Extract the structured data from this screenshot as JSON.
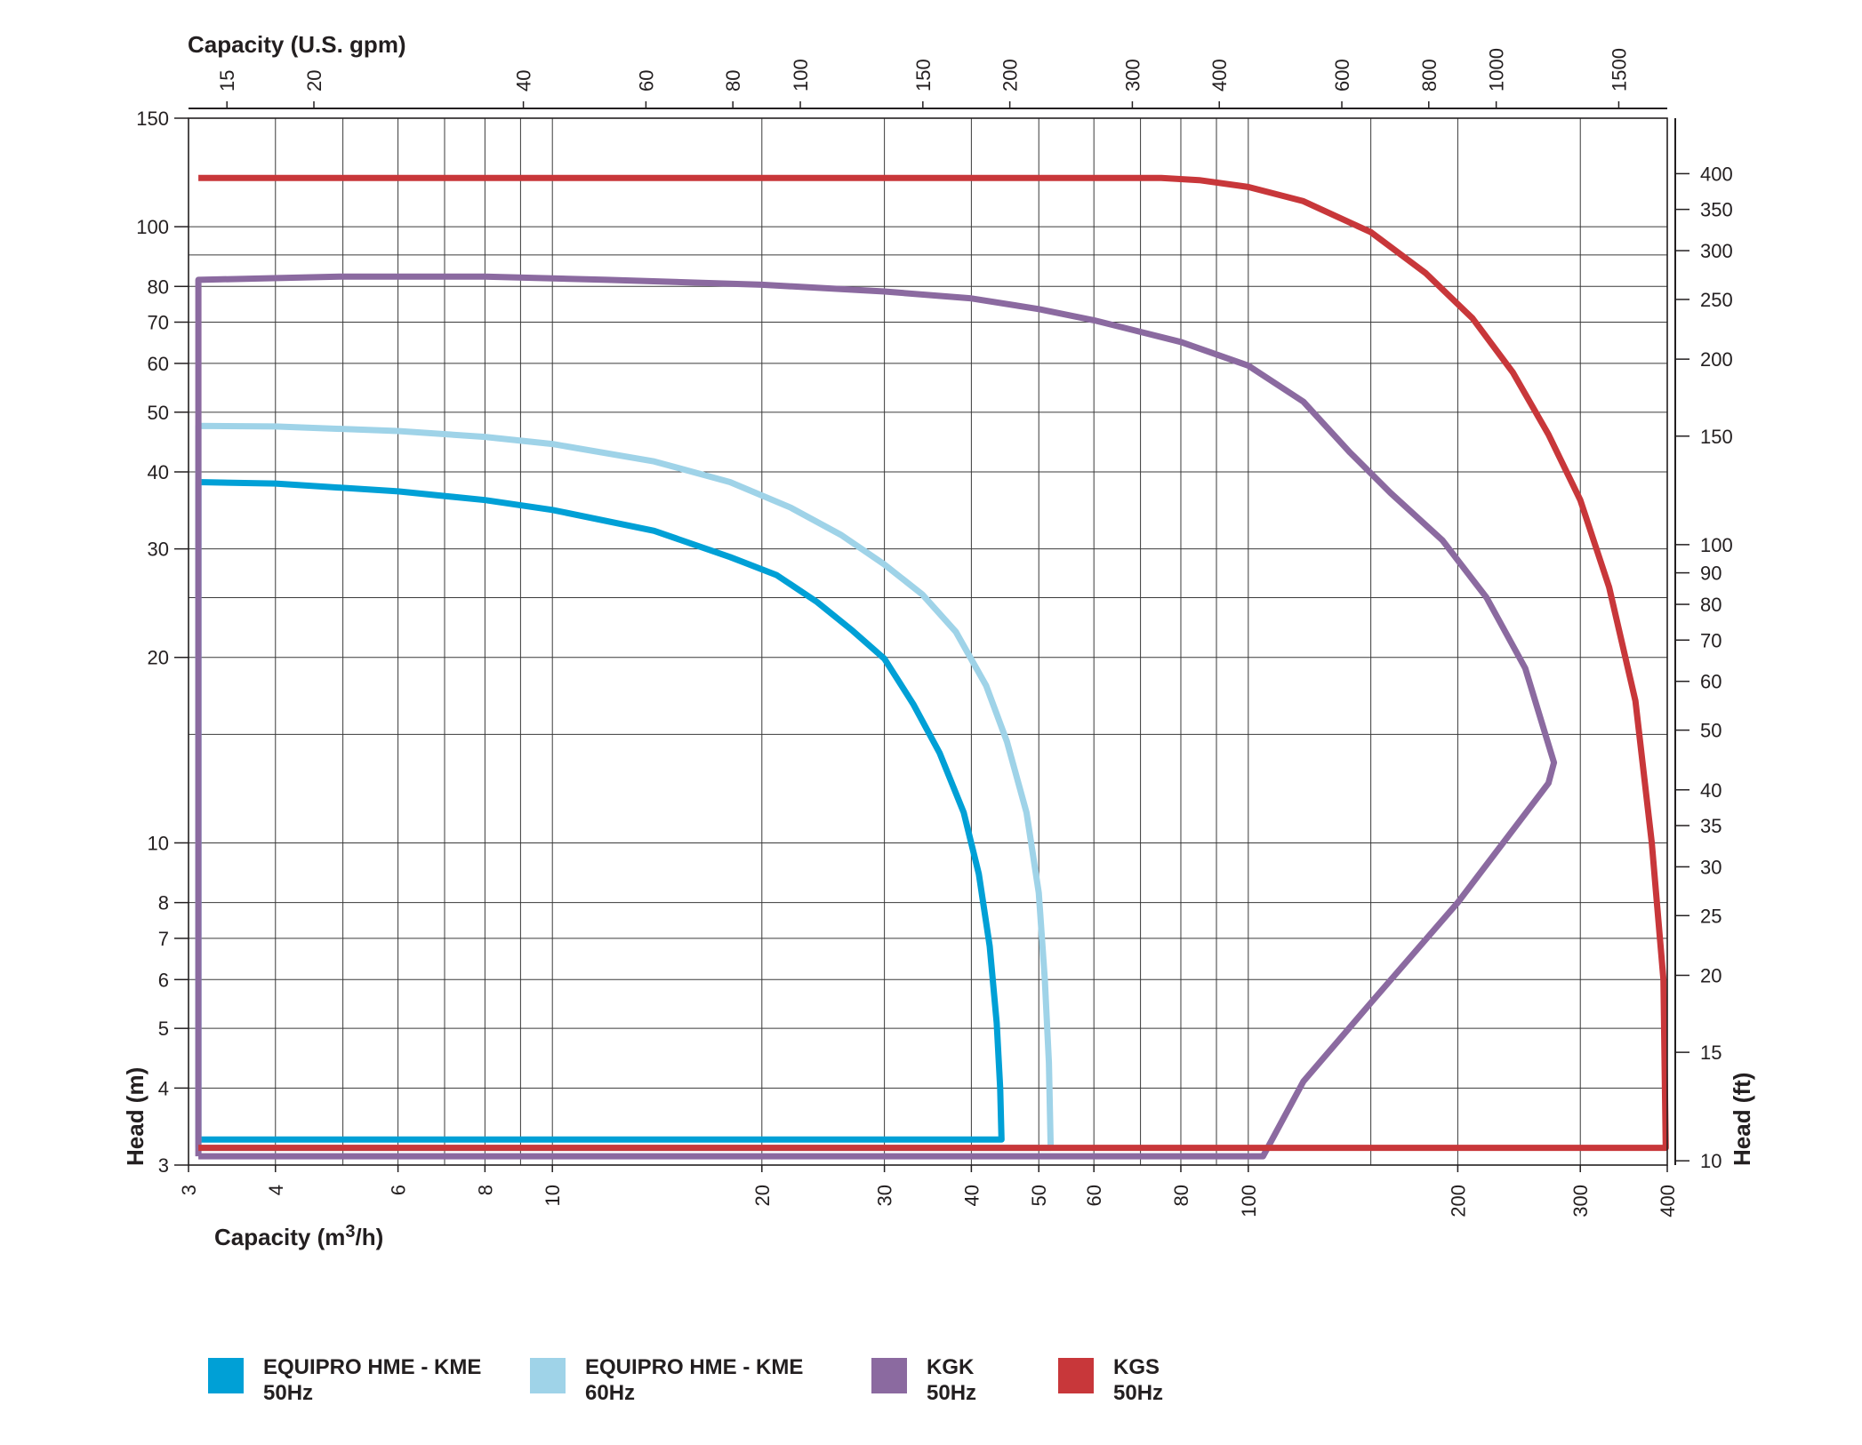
{
  "chart_data": {
    "type": "line",
    "x_axis_bottom": {
      "label_main": "Capacity (m",
      "label_sup": "3",
      "label_tail": "/h)",
      "scale": "log",
      "range": [
        3,
        400
      ],
      "ticks": [
        "3",
        "4",
        "6",
        "8",
        "10",
        "20",
        "30",
        "40",
        "50",
        "60",
        "80",
        "100",
        "200",
        "300",
        "400"
      ]
    },
    "x_axis_top": {
      "label": "Capacity (U.S. gpm)",
      "scale": "log",
      "ticks": [
        "15",
        "20",
        "40",
        "60",
        "80",
        "100",
        "150",
        "200",
        "300",
        "400",
        "600",
        "800",
        "1000",
        "1500"
      ]
    },
    "y_axis_left": {
      "label": "Head (m)",
      "scale": "log",
      "range": [
        3,
        150
      ],
      "ticks": [
        "3",
        "4",
        "5",
        "6",
        "7",
        "8",
        "10",
        "20",
        "30",
        "40",
        "50",
        "60",
        "70",
        "80",
        "100",
        "150"
      ]
    },
    "y_axis_right": {
      "label": "Head (ft)",
      "scale": "log",
      "ticks": [
        "10",
        "15",
        "20",
        "25",
        "30",
        "35",
        "40",
        "50",
        "60",
        "70",
        "80",
        "90",
        "100",
        "150",
        "200",
        "250",
        "300",
        "350",
        "400"
      ]
    },
    "grid": true,
    "legend_position": "bottom",
    "series": [
      {
        "name_line1": "EQUIPRO HME - KME",
        "name_line2": "50Hz",
        "color": "#00a0d6",
        "points": [
          [
            3.1,
            3.3
          ],
          [
            3.1,
            38.5
          ],
          [
            4,
            38.3
          ],
          [
            6,
            37.2
          ],
          [
            8,
            36
          ],
          [
            10,
            34.7
          ],
          [
            14,
            32.1
          ],
          [
            18,
            29.1
          ],
          [
            21,
            27.2
          ],
          [
            24,
            24.6
          ],
          [
            27,
            22.1
          ],
          [
            30,
            19.9
          ],
          [
            33,
            16.8
          ],
          [
            36,
            14.0
          ],
          [
            39,
            11.2
          ],
          [
            41,
            8.9
          ],
          [
            42.5,
            6.8
          ],
          [
            43.5,
            5.1
          ],
          [
            44,
            4.0
          ],
          [
            44.2,
            3.3
          ],
          [
            3.1,
            3.3
          ]
        ]
      },
      {
        "name_line1": "EQUIPRO HME - KME",
        "name_line2": "60Hz",
        "color": "#9fd3e8",
        "points": [
          [
            3.1,
            3.2
          ],
          [
            3.1,
            47.5
          ],
          [
            4,
            47.4
          ],
          [
            6,
            46.6
          ],
          [
            8,
            45.6
          ],
          [
            10,
            44.4
          ],
          [
            14,
            41.6
          ],
          [
            18,
            38.5
          ],
          [
            22,
            35.0
          ],
          [
            26,
            31.6
          ],
          [
            30,
            28.3
          ],
          [
            34,
            25.3
          ],
          [
            38,
            22.0
          ],
          [
            42,
            18.0
          ],
          [
            45,
            14.6
          ],
          [
            48,
            11.2
          ],
          [
            50,
            8.3
          ],
          [
            51,
            6.0
          ],
          [
            51.7,
            4.4
          ],
          [
            52,
            3.2
          ],
          [
            3.1,
            3.2
          ]
        ]
      },
      {
        "name_line1": "KGK",
        "name_line2": "50Hz",
        "color": "#8b6aa0",
        "points": [
          [
            3.1,
            3.1
          ],
          [
            3.1,
            82
          ],
          [
            5,
            83
          ],
          [
            8,
            83
          ],
          [
            12,
            82
          ],
          [
            20,
            80.5
          ],
          [
            30,
            78.5
          ],
          [
            40,
            76.5
          ],
          [
            50,
            73.5
          ],
          [
            60,
            70.5
          ],
          [
            80,
            65
          ],
          [
            100,
            59.5
          ],
          [
            120,
            52
          ],
          [
            140,
            43
          ],
          [
            160,
            37
          ],
          [
            190,
            31
          ],
          [
            220,
            25
          ],
          [
            250,
            19.2
          ],
          [
            275,
            13.5
          ],
          [
            270,
            12.5
          ],
          [
            200,
            8
          ],
          [
            150,
            5.5
          ],
          [
            120,
            4.1
          ],
          [
            105,
            3.1
          ],
          [
            3.1,
            3.1
          ]
        ]
      },
      {
        "name_line1": "KGS",
        "name_line2": "50Hz",
        "color": "#c8373a",
        "points": [
          [
            3.1,
            120
          ],
          [
            75,
            120
          ],
          [
            85,
            119
          ],
          [
            100,
            116
          ],
          [
            120,
            110
          ],
          [
            150,
            98
          ],
          [
            180,
            84
          ],
          [
            210,
            71
          ],
          [
            240,
            58
          ],
          [
            270,
            46
          ],
          [
            300,
            36
          ],
          [
            330,
            26
          ],
          [
            360,
            17
          ],
          [
            380,
            10
          ],
          [
            395,
            6
          ],
          [
            398,
            3.2
          ],
          [
            3.1,
            3.2
          ]
        ]
      }
    ]
  }
}
